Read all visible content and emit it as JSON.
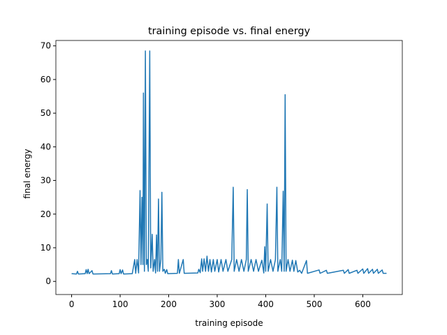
{
  "chart_data": {
    "type": "line",
    "title": "training episode vs. final energy",
    "x_label": "training episode",
    "y_label": "final energy",
    "color": "#1f77b4",
    "x": [
      0,
      10,
      12,
      14,
      28,
      30,
      32,
      34,
      36,
      42,
      44,
      80,
      82,
      84,
      98,
      100,
      102,
      105,
      107,
      125,
      130,
      132,
      135,
      138,
      141,
      143,
      145,
      147,
      148,
      150,
      152,
      154,
      156,
      158,
      161,
      163,
      166,
      168,
      171,
      173,
      175,
      177,
      179,
      181,
      184,
      186,
      188,
      191,
      193,
      196,
      198,
      218,
      220,
      222,
      230,
      232,
      260,
      262,
      265,
      268,
      270,
      273,
      276,
      279,
      282,
      285,
      288,
      292,
      295,
      300,
      303,
      308,
      312,
      318,
      322,
      330,
      333,
      335,
      340,
      345,
      350,
      355,
      360,
      362,
      364,
      370,
      375,
      380,
      385,
      392,
      396,
      398,
      400,
      403,
      405,
      410,
      415,
      420,
      423,
      425,
      430,
      433,
      436,
      438,
      440,
      442,
      446,
      450,
      455,
      458,
      462,
      466,
      470,
      474,
      484,
      486,
      510,
      512,
      525,
      527,
      560,
      562,
      570,
      572,
      588,
      590,
      600,
      602,
      610,
      612,
      620,
      622,
      630,
      632,
      640,
      642,
      649
    ],
    "values": [
      2.3,
      2.2,
      3.0,
      2.2,
      2.3,
      3.5,
      2.3,
      3.6,
      2.3,
      3.2,
      2.2,
      2.3,
      3.2,
      2.2,
      2.3,
      3.5,
      2.3,
      3.4,
      2.2,
      2.3,
      6.5,
      2.4,
      6.5,
      2.5,
      27,
      5,
      25,
      5,
      56,
      3,
      68.5,
      5,
      6.5,
      3,
      68.5,
      4,
      14,
      3,
      6.5,
      2.5,
      13.8,
      3,
      24.5,
      3,
      6.5,
      26.5,
      3,
      3.6,
      2.4,
      3.5,
      2.3,
      2.4,
      6.5,
      2.4,
      6.5,
      2.4,
      2.5,
      3.6,
      2.6,
      6.7,
      3,
      6.7,
      3,
      7.5,
      3,
      6.5,
      2.8,
      6.5,
      3,
      6.5,
      2.8,
      6.5,
      3,
      6.5,
      3,
      6.5,
      28,
      3,
      6.5,
      3,
      6.5,
      3,
      6.5,
      27.3,
      3,
      6.5,
      3,
      6.5,
      3,
      6.3,
      2.5,
      10.3,
      3,
      23,
      3,
      6.5,
      3,
      6.5,
      28,
      3,
      6.5,
      3,
      26.8,
      3,
      55.5,
      3,
      6.5,
      3,
      6.3,
      3,
      6.2,
      2.8,
      3.3,
      2.4,
      6.2,
      2.4,
      3.4,
      2.4,
      3.3,
      2.4,
      3.3,
      2.4,
      3.5,
      2.4,
      3.3,
      2.4,
      3.7,
      2.4,
      3.8,
      2.4,
      3.6,
      2.4,
      3.6,
      2.4,
      3.4,
      2.4,
      2.4
    ],
    "xlim": [
      -32.45,
      681.45
    ],
    "ylim": [
      -3.9,
      71.6
    ],
    "xticks": [
      0,
      100,
      200,
      300,
      400,
      500,
      600
    ],
    "yticks": [
      0,
      10,
      20,
      30,
      40,
      50,
      60,
      70
    ]
  }
}
